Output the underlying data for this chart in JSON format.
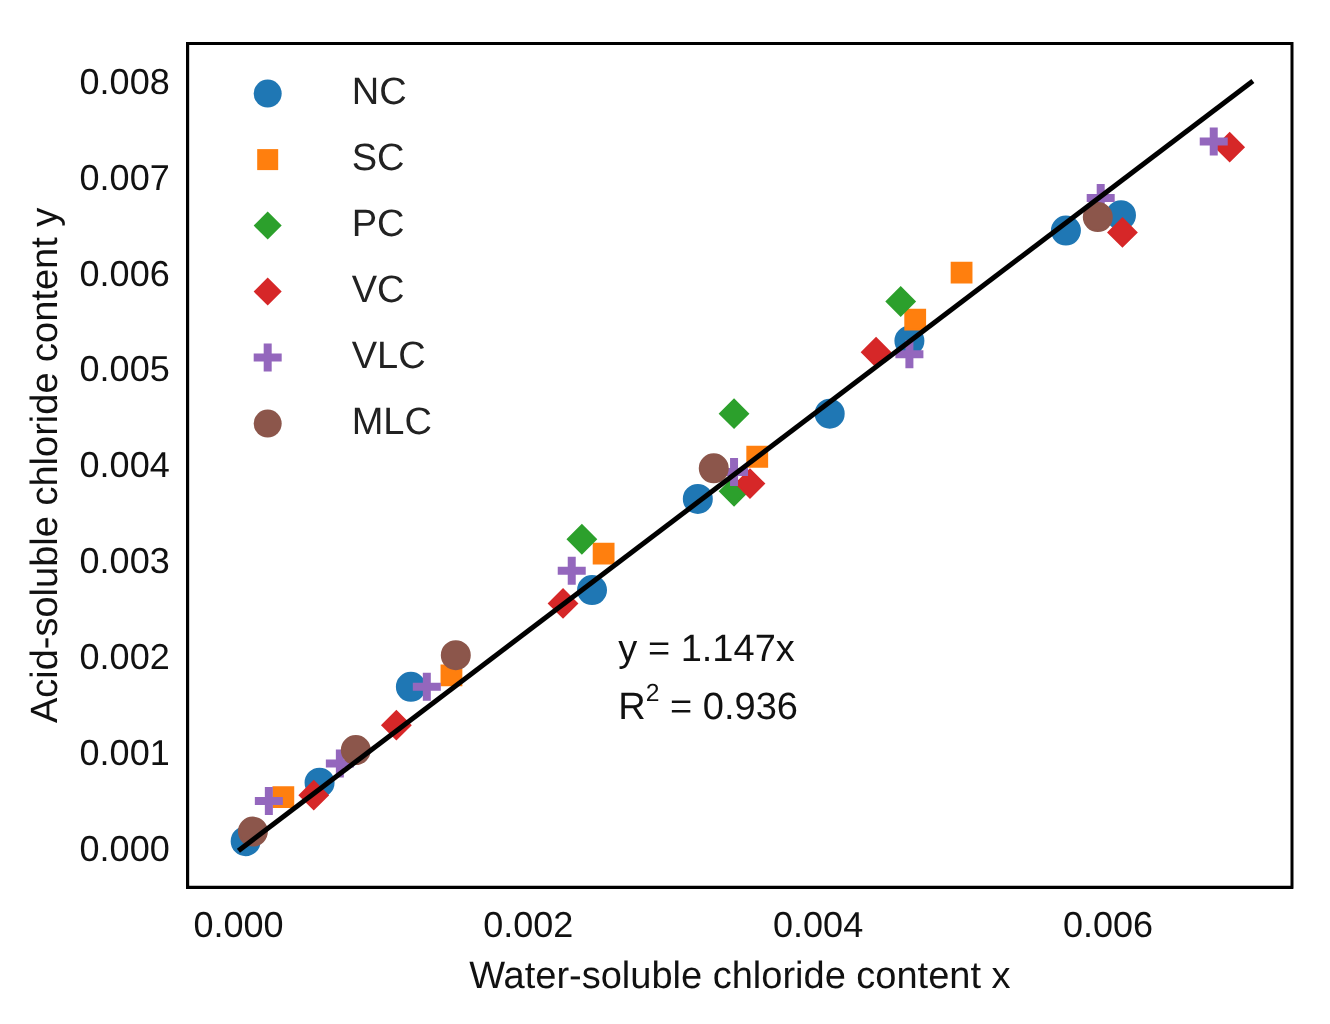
{
  "chart_data": {
    "type": "scatter",
    "xlabel": "Water-soluble chloride content x",
    "ylabel": "Acid-soluble chloride content y",
    "xlim": [
      -0.00035,
      0.00727
    ],
    "ylim": [
      -0.00038,
      0.00842
    ],
    "xticks": [
      {
        "value": 0,
        "label": "0.000"
      },
      {
        "value": 0.002,
        "label": "0.002"
      },
      {
        "value": 0.004,
        "label": "0.004"
      },
      {
        "value": 0.006,
        "label": "0.006"
      }
    ],
    "yticks": [
      {
        "value": 0,
        "label": "0.000"
      },
      {
        "value": 0.001,
        "label": "0.001"
      },
      {
        "value": 0.002,
        "label": "0.002"
      },
      {
        "value": 0.003,
        "label": "0.003"
      },
      {
        "value": 0.004,
        "label": "0.004"
      },
      {
        "value": 0.005,
        "label": "0.005"
      },
      {
        "value": 0.006,
        "label": "0.006"
      },
      {
        "value": 0.007,
        "label": "0.007"
      },
      {
        "value": 0.008,
        "label": "0.008"
      }
    ],
    "grid": false,
    "legend": "top left",
    "annotations": [
      "y = 1.147x",
      "R$^{2}$ = 0.936"
    ],
    "series": [
      {
        "name": "NC",
        "color": "#1f77b4",
        "marker": "circle",
        "x": [
          5e-05,
          0.00056,
          0.00119,
          0.00244,
          0.00317,
          0.00408,
          0.00463,
          0.00571,
          0.00609
        ],
        "values": [
          0.0001,
          0.00071,
          0.00171,
          0.00272,
          0.00367,
          0.00456,
          0.00532,
          0.00647,
          0.00663
        ]
      },
      {
        "name": "SC",
        "color": "#ff7f0e",
        "marker": "square",
        "x": [
          0.00031,
          0.00147,
          0.00252,
          0.00358,
          0.00467,
          0.00499
        ],
        "values": [
          0.00056,
          0.00183,
          0.0031,
          0.00411,
          0.00554,
          0.00603
        ]
      },
      {
        "name": "PC",
        "color": "#2ca02c",
        "marker": "diamond",
        "x": [
          0.00237,
          0.00342,
          0.00342,
          0.00457
        ],
        "values": [
          0.00325,
          0.00375,
          0.00456,
          0.00573
        ]
      },
      {
        "name": "VC",
        "color": "#d62728",
        "marker": "diamond",
        "x": [
          0.00052,
          0.00109,
          0.00224,
          0.00353,
          0.0044,
          0.0061,
          0.00684
        ],
        "values": [
          0.00058,
          0.00131,
          0.00258,
          0.00383,
          0.0052,
          0.00645,
          0.00734
        ]
      },
      {
        "name": "VLC",
        "color": "#9467bd",
        "marker": "cross",
        "x": [
          0.00021,
          0.0007,
          0.0013,
          0.0023,
          0.00342,
          0.00463,
          0.00595,
          0.00673
        ],
        "values": [
          0.00052,
          0.00091,
          0.00171,
          0.00292,
          0.00395,
          0.00518,
          0.00681,
          0.0074
        ]
      },
      {
        "name": "MLC",
        "color": "#8c564b",
        "marker": "circle",
        "x": [
          0.0001,
          0.00081,
          0.0015,
          0.00328,
          0.00593
        ],
        "values": [
          0.0002,
          0.00105,
          0.00204,
          0.00399,
          0.00661
        ]
      },
      {
        "type": "line",
        "color": "#000000",
        "marker": "none",
        "line_style": "solid",
        "x": [
          0,
          0.007
        ],
        "values": [
          0,
          0.00803
        ]
      }
    ]
  }
}
